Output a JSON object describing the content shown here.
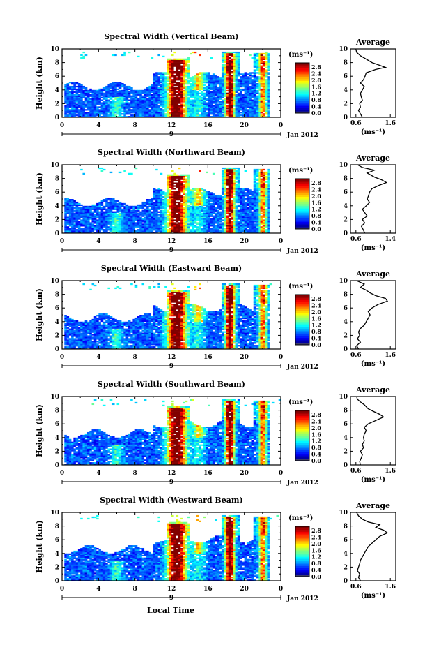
{
  "figure": {
    "xlabel": "Local Time",
    "date_label": "Jan 2012",
    "date_tick": "9",
    "ylabel": "Height (km)",
    "colorbar_unit": "(ms⁻¹)",
    "avg_xlabel": "(ms⁻¹)"
  },
  "chart_data": [
    {
      "type": "heatmap",
      "title": "Spectral Width (Vertical Beam)",
      "xlim": [
        0,
        24
      ],
      "ylim": [
        0,
        10
      ],
      "xticks": [
        "0",
        "4",
        "8",
        "12",
        "16",
        "20",
        "0"
      ],
      "yticks": [
        "0",
        "2",
        "4",
        "6",
        "8",
        "10"
      ],
      "colorbar_ticks": [
        "0.0",
        "0.4",
        "0.8",
        "1.2",
        "1.6",
        "2.0",
        "2.4",
        "2.8"
      ],
      "average": {
        "title": "Average",
        "xticks": [
          "0.6",
          "1.6"
        ],
        "xlim": [
          0.6,
          1.6
        ],
        "profile": [
          [
            0.0,
            0.85
          ],
          [
            0.5,
            0.8
          ],
          [
            1.0,
            0.75
          ],
          [
            1.5,
            0.8
          ],
          [
            2.0,
            0.78
          ],
          [
            2.5,
            0.85
          ],
          [
            3.0,
            0.82
          ],
          [
            3.5,
            0.8
          ],
          [
            4.0,
            0.85
          ],
          [
            4.5,
            0.9
          ],
          [
            5.0,
            0.8
          ],
          [
            5.5,
            0.88
          ],
          [
            6.0,
            0.92
          ],
          [
            6.5,
            0.95
          ],
          [
            7.0,
            1.2
          ],
          [
            7.3,
            1.45
          ],
          [
            7.6,
            1.3
          ],
          [
            8.0,
            1.1
          ],
          [
            8.5,
            0.95
          ],
          [
            9.0,
            0.8
          ],
          [
            9.5,
            0.7
          ],
          [
            10.0,
            0.68
          ]
        ]
      }
    },
    {
      "type": "heatmap",
      "title": "Spectral Width (Northward Beam)",
      "xlim": [
        0,
        24
      ],
      "ylim": [
        0,
        10
      ],
      "xticks": [
        "0",
        "4",
        "8",
        "12",
        "16",
        "20",
        "0"
      ],
      "yticks": [
        "0",
        "2",
        "4",
        "6",
        "8",
        "10"
      ],
      "colorbar_ticks": [
        "0.0",
        "0.4",
        "0.8",
        "1.2",
        "1.6",
        "2.0",
        "2.4",
        "2.8"
      ],
      "average": {
        "title": "Average",
        "xticks": [
          "0.6",
          "1.4"
        ],
        "xlim": [
          0.6,
          1.4
        ],
        "profile": [
          [
            0.0,
            0.85
          ],
          [
            0.5,
            0.82
          ],
          [
            1.0,
            0.78
          ],
          [
            1.5,
            0.85
          ],
          [
            2.0,
            0.8
          ],
          [
            2.5,
            0.9
          ],
          [
            3.0,
            0.85
          ],
          [
            3.5,
            0.8
          ],
          [
            4.0,
            0.88
          ],
          [
            4.5,
            0.95
          ],
          [
            5.0,
            0.9
          ],
          [
            5.5,
            0.93
          ],
          [
            6.0,
            0.95
          ],
          [
            6.5,
            1.0
          ],
          [
            7.0,
            1.15
          ],
          [
            7.4,
            1.3
          ],
          [
            7.8,
            1.2
          ],
          [
            8.2,
            1.05
          ],
          [
            8.8,
            0.9
          ],
          [
            9.2,
            1.05
          ],
          [
            9.6,
            0.8
          ],
          [
            10.0,
            0.7
          ]
        ]
      }
    },
    {
      "type": "heatmap",
      "title": "Spectral Width (Eastward Beam)",
      "xlim": [
        0,
        24
      ],
      "ylim": [
        0,
        10
      ],
      "xticks": [
        "0",
        "4",
        "8",
        "12",
        "16",
        "20",
        "0"
      ],
      "yticks": [
        "0",
        "2",
        "4",
        "6",
        "8",
        "10"
      ],
      "colorbar_ticks": [
        "0.0",
        "0.4",
        "0.8",
        "1.2",
        "1.6",
        "2.0",
        "2.4",
        "2.8"
      ],
      "average": {
        "title": "Average",
        "xticks": [
          "0.6",
          "1.6"
        ],
        "xlim": [
          0.6,
          1.6
        ],
        "profile": [
          [
            0.0,
            0.75
          ],
          [
            0.5,
            0.7
          ],
          [
            1.0,
            0.8
          ],
          [
            1.5,
            0.72
          ],
          [
            2.0,
            0.78
          ],
          [
            2.5,
            0.75
          ],
          [
            3.0,
            0.8
          ],
          [
            3.5,
            0.9
          ],
          [
            4.0,
            0.95
          ],
          [
            4.5,
            1.0
          ],
          [
            5.0,
            1.05
          ],
          [
            5.5,
            1.0
          ],
          [
            6.0,
            1.1
          ],
          [
            6.5,
            1.25
          ],
          [
            7.0,
            1.5
          ],
          [
            7.4,
            1.45
          ],
          [
            7.8,
            1.2
          ],
          [
            8.2,
            1.05
          ],
          [
            8.6,
            0.95
          ],
          [
            9.0,
            0.8
          ],
          [
            9.5,
            0.9
          ],
          [
            10.0,
            0.7
          ]
        ]
      }
    },
    {
      "type": "heatmap",
      "title": "Spectral Width (Southward Beam)",
      "xlim": [
        0,
        24
      ],
      "ylim": [
        0,
        10
      ],
      "xticks": [
        "0",
        "4",
        "8",
        "12",
        "16",
        "20",
        "0"
      ],
      "yticks": [
        "0",
        "2",
        "4",
        "6",
        "8",
        "10"
      ],
      "colorbar_ticks": [
        "0.0",
        "0.4",
        "0.8",
        "1.2",
        "1.6",
        "2.0",
        "2.4",
        "2.8"
      ],
      "average": {
        "title": "Average",
        "xticks": [
          "0.6",
          "1.6"
        ],
        "xlim": [
          0.6,
          1.6
        ],
        "profile": [
          [
            0.0,
            0.8
          ],
          [
            0.5,
            0.78
          ],
          [
            1.0,
            0.82
          ],
          [
            1.5,
            0.85
          ],
          [
            2.0,
            0.8
          ],
          [
            2.5,
            0.88
          ],
          [
            3.0,
            0.85
          ],
          [
            3.5,
            0.9
          ],
          [
            4.0,
            0.88
          ],
          [
            4.5,
            0.9
          ],
          [
            5.0,
            0.95
          ],
          [
            5.5,
            0.9
          ],
          [
            6.0,
            1.0
          ],
          [
            6.5,
            1.2
          ],
          [
            7.0,
            1.4
          ],
          [
            7.4,
            1.3
          ],
          [
            7.8,
            1.15
          ],
          [
            8.2,
            1.0
          ],
          [
            8.8,
            0.9
          ],
          [
            9.2,
            0.8
          ],
          [
            9.6,
            0.72
          ],
          [
            10.0,
            0.7
          ]
        ]
      }
    },
    {
      "type": "heatmap",
      "title": "Spectral Width (Westward Beam)",
      "xlim": [
        0,
        24
      ],
      "ylim": [
        0,
        10
      ],
      "xticks": [
        "0",
        "4",
        "8",
        "12",
        "16",
        "20",
        "0"
      ],
      "yticks": [
        "0",
        "2",
        "4",
        "6",
        "8",
        "10"
      ],
      "colorbar_ticks": [
        "0.0",
        "0.4",
        "0.8",
        "1.2",
        "1.6",
        "2.0",
        "2.4",
        "2.8"
      ],
      "average": {
        "title": "Average",
        "xticks": [
          "0.6",
          "1.6"
        ],
        "xlim": [
          0.6,
          1.6
        ],
        "profile": [
          [
            0.0,
            0.8
          ],
          [
            0.5,
            0.75
          ],
          [
            1.0,
            0.78
          ],
          [
            1.5,
            0.72
          ],
          [
            2.0,
            0.75
          ],
          [
            2.5,
            0.78
          ],
          [
            3.0,
            0.8
          ],
          [
            3.5,
            0.85
          ],
          [
            4.0,
            0.9
          ],
          [
            4.5,
            0.95
          ],
          [
            5.0,
            1.0
          ],
          [
            5.5,
            1.1
          ],
          [
            6.0,
            1.2
          ],
          [
            6.5,
            1.3
          ],
          [
            7.0,
            1.5
          ],
          [
            7.4,
            1.4
          ],
          [
            7.8,
            1.2
          ],
          [
            8.2,
            1.3
          ],
          [
            8.6,
            1.0
          ],
          [
            9.0,
            0.85
          ],
          [
            9.5,
            0.75
          ],
          [
            10.0,
            0.7
          ]
        ]
      }
    }
  ]
}
